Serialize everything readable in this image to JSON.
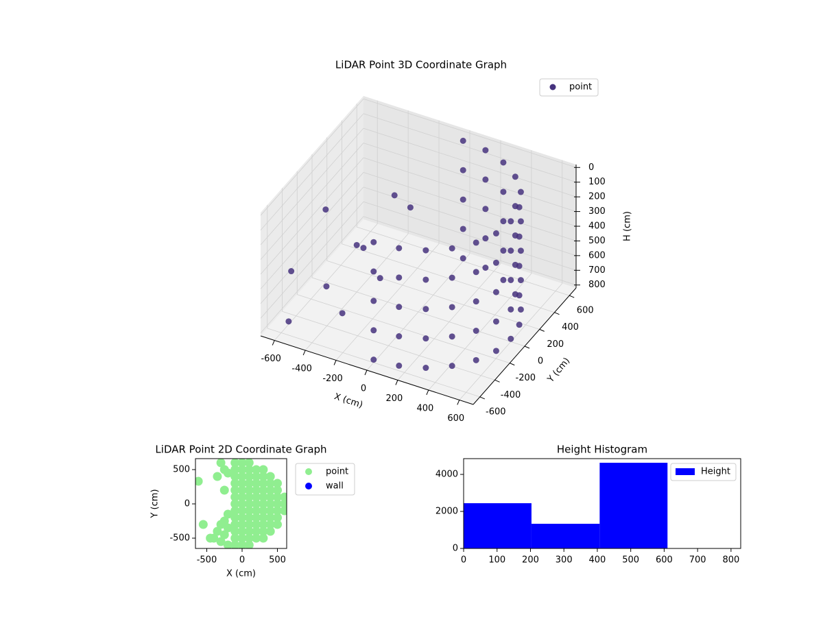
{
  "chart_data": [
    {
      "type": "scatter3d",
      "title": "LiDAR Point 3D Coordinate Graph",
      "x_label": "X (cm)",
      "y_label": "Y (cm)",
      "z_label": "H (cm)",
      "xlim": [
        -690,
        690
      ],
      "ylim": [
        -690,
        690
      ],
      "zlim": [
        -20,
        820
      ],
      "z_inverted": true,
      "xticks": [
        -600,
        -400,
        -200,
        0,
        200,
        400,
        600
      ],
      "yticks": [
        -600,
        -400,
        -200,
        0,
        200,
        400,
        600
      ],
      "zticks": [
        0,
        100,
        200,
        300,
        400,
        500,
        600,
        700,
        800
      ],
      "grid": true,
      "legend": "upper right",
      "series": [
        {
          "name": "point",
          "color": "#46337e",
          "x": [
            0,
            155,
            300,
            424,
            520,
            580,
            600,
            580,
            520,
            424,
            300,
            155,
            0,
            0,
            155,
            300,
            424,
            520,
            580,
            600,
            580,
            520,
            424,
            300,
            155,
            0,
            0,
            155,
            300,
            424,
            520,
            580,
            600,
            580,
            520,
            424,
            300,
            155,
            0,
            0,
            155,
            300,
            424,
            520,
            580,
            600,
            580,
            520,
            424,
            300,
            155,
            0,
            0,
            155,
            300,
            424,
            520,
            580,
            600,
            580,
            520,
            424,
            300,
            155,
            0,
            -680,
            -650,
            -500,
            -400,
            -300,
            -200,
            -100,
            -600,
            -550,
            -300
          ],
          "y": [
            -600,
            -580,
            -520,
            -424,
            -300,
            -155,
            0,
            155,
            300,
            424,
            520,
            580,
            600,
            -600,
            -580,
            -520,
            -424,
            -300,
            -155,
            0,
            155,
            300,
            424,
            520,
            580,
            600,
            -600,
            -580,
            -520,
            -424,
            -300,
            -155,
            0,
            155,
            300,
            424,
            520,
            580,
            600,
            -600,
            -580,
            -520,
            -424,
            -300,
            -155,
            0,
            155,
            300,
            424,
            520,
            580,
            600,
            -600,
            -580,
            -520,
            -424,
            -300,
            -155,
            0,
            155,
            300,
            424,
            520,
            580,
            600,
            -300,
            100,
            -200,
            0,
            300,
            -100,
            100,
            -500,
            400,
            -400
          ],
          "z": [
            0,
            0,
            0,
            0,
            0,
            0,
            0,
            0,
            0,
            0,
            0,
            0,
            0,
            200,
            200,
            200,
            200,
            200,
            200,
            200,
            200,
            200,
            200,
            200,
            200,
            200,
            400,
            400,
            400,
            400,
            400,
            400,
            400,
            400,
            400,
            400,
            400,
            400,
            400,
            600,
            600,
            600,
            600,
            600,
            600,
            600,
            600,
            600,
            600,
            600,
            600,
            600,
            800,
            800,
            800,
            800,
            800,
            800,
            800,
            800,
            800,
            800,
            800,
            800,
            800,
            600,
            400,
            700,
            500,
            300,
            600,
            200,
            800,
            800,
            700
          ]
        }
      ]
    },
    {
      "type": "scatter",
      "title": "LiDAR Point 2D Coordinate Graph",
      "x_label": "X (cm)",
      "y_label": "Y (cm)",
      "xlim": [
        -660,
        631
      ],
      "ylim": [
        -650,
        660
      ],
      "xticks": [
        -500,
        0,
        500
      ],
      "yticks": [
        -500,
        0,
        500
      ],
      "legend": "outside right",
      "series": [
        {
          "name": "point",
          "color": "#90ee90",
          "x": [
            -100,
            0,
            100,
            -100,
            0,
            100,
            200,
            300,
            -100,
            0,
            100,
            200,
            300,
            400,
            -100,
            0,
            100,
            200,
            300,
            400,
            500,
            -100,
            0,
            100,
            200,
            300,
            400,
            500,
            -100,
            0,
            100,
            200,
            300,
            400,
            500,
            600,
            -100,
            0,
            100,
            200,
            300,
            400,
            500,
            600,
            -100,
            0,
            100,
            200,
            300,
            400,
            500,
            600,
            -100,
            0,
            100,
            200,
            300,
            400,
            500,
            -100,
            0,
            100,
            200,
            300,
            400,
            500,
            -100,
            0,
            100,
            200,
            300,
            400,
            -100,
            0,
            100,
            200,
            300,
            -100,
            0,
            100,
            -300,
            -350,
            -250,
            -400,
            -300,
            -200,
            -250,
            -200,
            -550,
            -450,
            -620,
            -300,
            -250,
            -350,
            -200,
            -250,
            -200
          ],
          "y": [
            600,
            600,
            600,
            500,
            500,
            500,
            500,
            500,
            400,
            400,
            400,
            400,
            400,
            400,
            300,
            300,
            300,
            300,
            300,
            300,
            300,
            200,
            200,
            200,
            200,
            200,
            200,
            200,
            100,
            100,
            100,
            100,
            100,
            100,
            100,
            100,
            0,
            0,
            0,
            0,
            0,
            0,
            0,
            0,
            -100,
            -100,
            -100,
            -100,
            -100,
            -100,
            -100,
            -100,
            -200,
            -200,
            -200,
            -200,
            -200,
            -200,
            -200,
            -300,
            -300,
            -300,
            -300,
            -300,
            -300,
            -300,
            -400,
            -400,
            -400,
            -400,
            -400,
            -400,
            -500,
            -500,
            -500,
            -500,
            -500,
            -600,
            -600,
            -600,
            -300,
            -400,
            -450,
            -500,
            -550,
            -600,
            -250,
            -350,
            -300,
            -500,
            330,
            600,
            500,
            400,
            450,
            200,
            -150
          ]
        },
        {
          "name": "wall",
          "color": "#0000ff",
          "x": [],
          "y": []
        }
      ]
    },
    {
      "type": "histogram",
      "title": "Height Histogram",
      "name": "Height",
      "color": "#0000ff",
      "bins": [
        0,
        203,
        407,
        610,
        813
      ],
      "values": [
        2444,
        1333,
        4630,
        0
      ],
      "xlim": [
        0,
        829
      ],
      "ylim": [
        0,
        4852
      ],
      "xticks": [
        0,
        100,
        200,
        300,
        400,
        500,
        600,
        700,
        800
      ],
      "yticks": [
        0,
        2000,
        4000
      ],
      "legend": "upper right"
    }
  ]
}
